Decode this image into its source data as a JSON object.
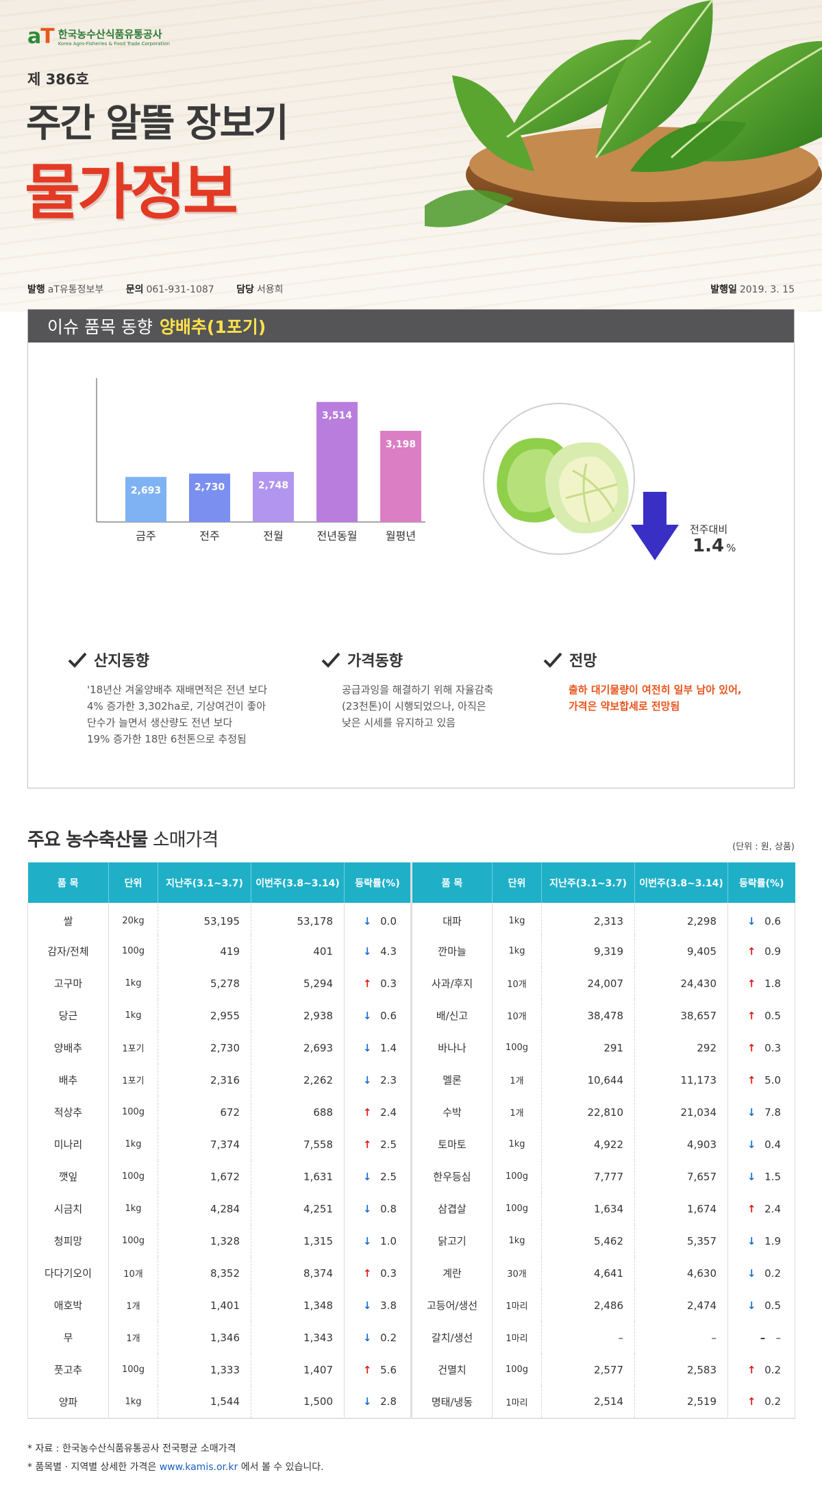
{
  "header": {
    "logo_ko": "한국농수산식품유통공사",
    "logo_en": "Korea Agro-Fisheries & Food Trade Corporation",
    "issue_no": "제 386호",
    "title": "주간 알뜰 장보기",
    "subtitle": "물가정보",
    "publisher_label": "발행",
    "publisher": "aT유통정보부",
    "contact_label": "문의",
    "contact": "061-931-1087",
    "manager_label": "담당",
    "manager": "서용희",
    "date_label": "발행일",
    "date": "2019. 3. 15"
  },
  "issue": {
    "heading": "이슈 품목 동향",
    "item": "양배추(1포기)",
    "change_label": "전주대비",
    "change_value": "1.4",
    "change_unit": "%",
    "columns": [
      {
        "title": "산지동향",
        "lines": [
          "'18년산 겨울양배추 재배면적은 전년 보다",
          "4% 증가한 3,302ha로, 기상여건이 좋아",
          "단수가 늘면서 생산량도 전년 보다",
          "19% 증가한 18만 6천톤으로 추정됨"
        ]
      },
      {
        "title": "가격동향",
        "lines": [
          "공급과잉을 해결하기 위해 자율감축",
          "(23천톤)이 시행되었으나, 아직은",
          "낮은 시세를 유지하고 있음"
        ]
      },
      {
        "title": "전망",
        "lines": [
          "출하 대기물량이 여전히 일부 남아 있어,",
          "가격은 약보합세로 전망됨"
        ]
      }
    ]
  },
  "chart_data": {
    "type": "bar",
    "categories": [
      "금주",
      "전주",
      "전월",
      "전년동월",
      "월평년"
    ],
    "values": [
      2693,
      2730,
      2748,
      3514,
      3198
    ],
    "value_labels": [
      "2,693",
      "2,730",
      "2,748",
      "3,514",
      "3,198"
    ],
    "colors": [
      "#7fb2f2",
      "#7b8ff0",
      "#b295ee",
      "#b87ddd",
      "#dc7ec4"
    ],
    "ylim": [
      2200,
      3700
    ],
    "title": "",
    "xlabel": "",
    "ylabel": ""
  },
  "prices": {
    "title_bold": "주요 농수축산물",
    "title_rest": " 소매가격",
    "unit_note": "(단위 : 원, 상품)",
    "headers": [
      "품 목",
      "단위",
      "지난주(3.1~3.7)",
      "이번주(3.8~3.14)",
      "등락률(%)"
    ],
    "rows": [
      [
        {
          "n": "쌀",
          "u": "20kg",
          "p": "53,195",
          "t": "53,178",
          "d": "down",
          "c": "0.0"
        },
        {
          "n": "대파",
          "u": "1kg",
          "p": "2,313",
          "t": "2,298",
          "d": "down",
          "c": "0.6"
        }
      ],
      [
        {
          "n": "감자/전체",
          "u": "100g",
          "p": "419",
          "t": "401",
          "d": "down",
          "c": "4.3"
        },
        {
          "n": "깐마늘",
          "u": "1kg",
          "p": "9,319",
          "t": "9,405",
          "d": "up",
          "c": "0.9"
        }
      ],
      [
        {
          "n": "고구마",
          "u": "1kg",
          "p": "5,278",
          "t": "5,294",
          "d": "up",
          "c": "0.3"
        },
        {
          "n": "사과/후지",
          "u": "10개",
          "p": "24,007",
          "t": "24,430",
          "d": "up",
          "c": "1.8"
        }
      ],
      [
        {
          "n": "당근",
          "u": "1kg",
          "p": "2,955",
          "t": "2,938",
          "d": "down",
          "c": "0.6"
        },
        {
          "n": "배/신고",
          "u": "10개",
          "p": "38,478",
          "t": "38,657",
          "d": "up",
          "c": "0.5"
        }
      ],
      [
        {
          "n": "양배추",
          "u": "1포기",
          "p": "2,730",
          "t": "2,693",
          "d": "down",
          "c": "1.4"
        },
        {
          "n": "바나나",
          "u": "100g",
          "p": "291",
          "t": "292",
          "d": "up",
          "c": "0.3"
        }
      ],
      [
        {
          "n": "배추",
          "u": "1포기",
          "p": "2,316",
          "t": "2,262",
          "d": "down",
          "c": "2.3"
        },
        {
          "n": "멜론",
          "u": "1개",
          "p": "10,644",
          "t": "11,173",
          "d": "up",
          "c": "5.0"
        }
      ],
      [
        {
          "n": "적상추",
          "u": "100g",
          "p": "672",
          "t": "688",
          "d": "up",
          "c": "2.4"
        },
        {
          "n": "수박",
          "u": "1개",
          "p": "22,810",
          "t": "21,034",
          "d": "down",
          "c": "7.8"
        }
      ],
      [
        {
          "n": "미나리",
          "u": "1kg",
          "p": "7,374",
          "t": "7,558",
          "d": "up",
          "c": "2.5"
        },
        {
          "n": "토마토",
          "u": "1kg",
          "p": "4,922",
          "t": "4,903",
          "d": "down",
          "c": "0.4"
        }
      ],
      [
        {
          "n": "깻잎",
          "u": "100g",
          "p": "1,672",
          "t": "1,631",
          "d": "down",
          "c": "2.5"
        },
        {
          "n": "한우등심",
          "u": "100g",
          "p": "7,777",
          "t": "7,657",
          "d": "down",
          "c": "1.5"
        }
      ],
      [
        {
          "n": "시금치",
          "u": "1kg",
          "p": "4,284",
          "t": "4,251",
          "d": "down",
          "c": "0.8"
        },
        {
          "n": "삼겹살",
          "u": "100g",
          "p": "1,634",
          "t": "1,674",
          "d": "up",
          "c": "2.4"
        }
      ],
      [
        {
          "n": "청피망",
          "u": "100g",
          "p": "1,328",
          "t": "1,315",
          "d": "down",
          "c": "1.0"
        },
        {
          "n": "닭고기",
          "u": "1kg",
          "p": "5,462",
          "t": "5,357",
          "d": "down",
          "c": "1.9"
        }
      ],
      [
        {
          "n": "다다기오이",
          "u": "10개",
          "p": "8,352",
          "t": "8,374",
          "d": "up",
          "c": "0.3"
        },
        {
          "n": "계란",
          "u": "30개",
          "p": "4,641",
          "t": "4,630",
          "d": "down",
          "c": "0.2"
        }
      ],
      [
        {
          "n": "애호박",
          "u": "1개",
          "p": "1,401",
          "t": "1,348",
          "d": "down",
          "c": "3.8"
        },
        {
          "n": "고등어/생선",
          "u": "1마리",
          "p": "2,486",
          "t": "2,474",
          "d": "down",
          "c": "0.5"
        }
      ],
      [
        {
          "n": "무",
          "u": "1개",
          "p": "1,346",
          "t": "1,343",
          "d": "down",
          "c": "0.2"
        },
        {
          "n": "갈치/생선",
          "u": "1마리",
          "p": "–",
          "t": "–",
          "d": "none",
          "c": "–"
        }
      ],
      [
        {
          "n": "풋고추",
          "u": "100g",
          "p": "1,333",
          "t": "1,407",
          "d": "up",
          "c": "5.6"
        },
        {
          "n": "건멸치",
          "u": "100g",
          "p": "2,577",
          "t": "2,583",
          "d": "up",
          "c": "0.2"
        }
      ],
      [
        {
          "n": "양파",
          "u": "1kg",
          "p": "1,544",
          "t": "1,500",
          "d": "down",
          "c": "2.8"
        },
        {
          "n": "명태/냉동",
          "u": "1마리",
          "p": "2,514",
          "t": "2,519",
          "d": "up",
          "c": "0.2"
        }
      ]
    ]
  },
  "footnotes": {
    "source": "* 자료 : 한국농수산식품유통공사 전국평균 소매가격",
    "detail_pre": "* 품목별 · 지역별 상세한 가격은 ",
    "detail_link": "www.kamis.or.kr",
    "detail_post": " 에서 볼 수 있습니다."
  }
}
